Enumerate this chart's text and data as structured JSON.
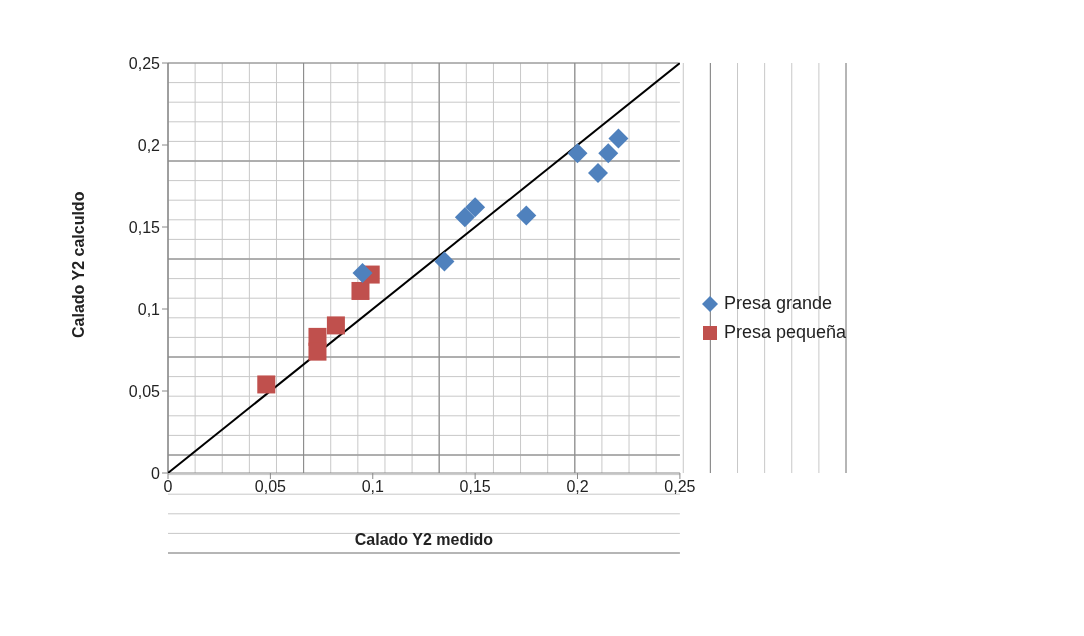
{
  "chart_data": {
    "type": "scatter",
    "xlabel": "Calado Y2 medido",
    "ylabel": "Calado Y2 calculdo",
    "xlim": [
      0,
      0.25
    ],
    "ylim": [
      0,
      0.25
    ],
    "xticks": [
      {
        "value": 0,
        "label": "0"
      },
      {
        "value": 0.05,
        "label": "0,05"
      },
      {
        "value": 0.1,
        "label": "0,1"
      },
      {
        "value": 0.15,
        "label": "0,15"
      },
      {
        "value": 0.2,
        "label": "0,2"
      },
      {
        "value": 0.25,
        "label": "0,25"
      }
    ],
    "yticks": [
      {
        "value": 0,
        "label": "0"
      },
      {
        "value": 0.05,
        "label": "0,05"
      },
      {
        "value": 0.1,
        "label": "0,1"
      },
      {
        "value": 0.15,
        "label": "0,15"
      },
      {
        "value": 0.2,
        "label": "0,2"
      },
      {
        "value": 0.25,
        "label": "0,25"
      }
    ],
    "grid": true,
    "legend": "right",
    "series": [
      {
        "name": "Presa grande",
        "color": "#4f81bd",
        "marker": "diamond",
        "x": [
          0.095,
          0.135,
          0.145,
          0.15,
          0.175,
          0.2,
          0.21,
          0.215,
          0.22
        ],
        "values": [
          0.122,
          0.129,
          0.156,
          0.162,
          0.157,
          0.195,
          0.183,
          0.195,
          0.204
        ]
      },
      {
        "name": "Presa pequeña",
        "color": "#c0504d",
        "marker": "square",
        "x": [
          0.048,
          0.073,
          0.073,
          0.082,
          0.094,
          0.099
        ],
        "values": [
          0.054,
          0.083,
          0.074,
          0.09,
          0.111,
          0.121
        ]
      },
      {
        "type": "line",
        "color": "#000000",
        "marker": "none",
        "x": [
          0,
          0.25
        ],
        "values": [
          0,
          0.25
        ]
      }
    ]
  }
}
